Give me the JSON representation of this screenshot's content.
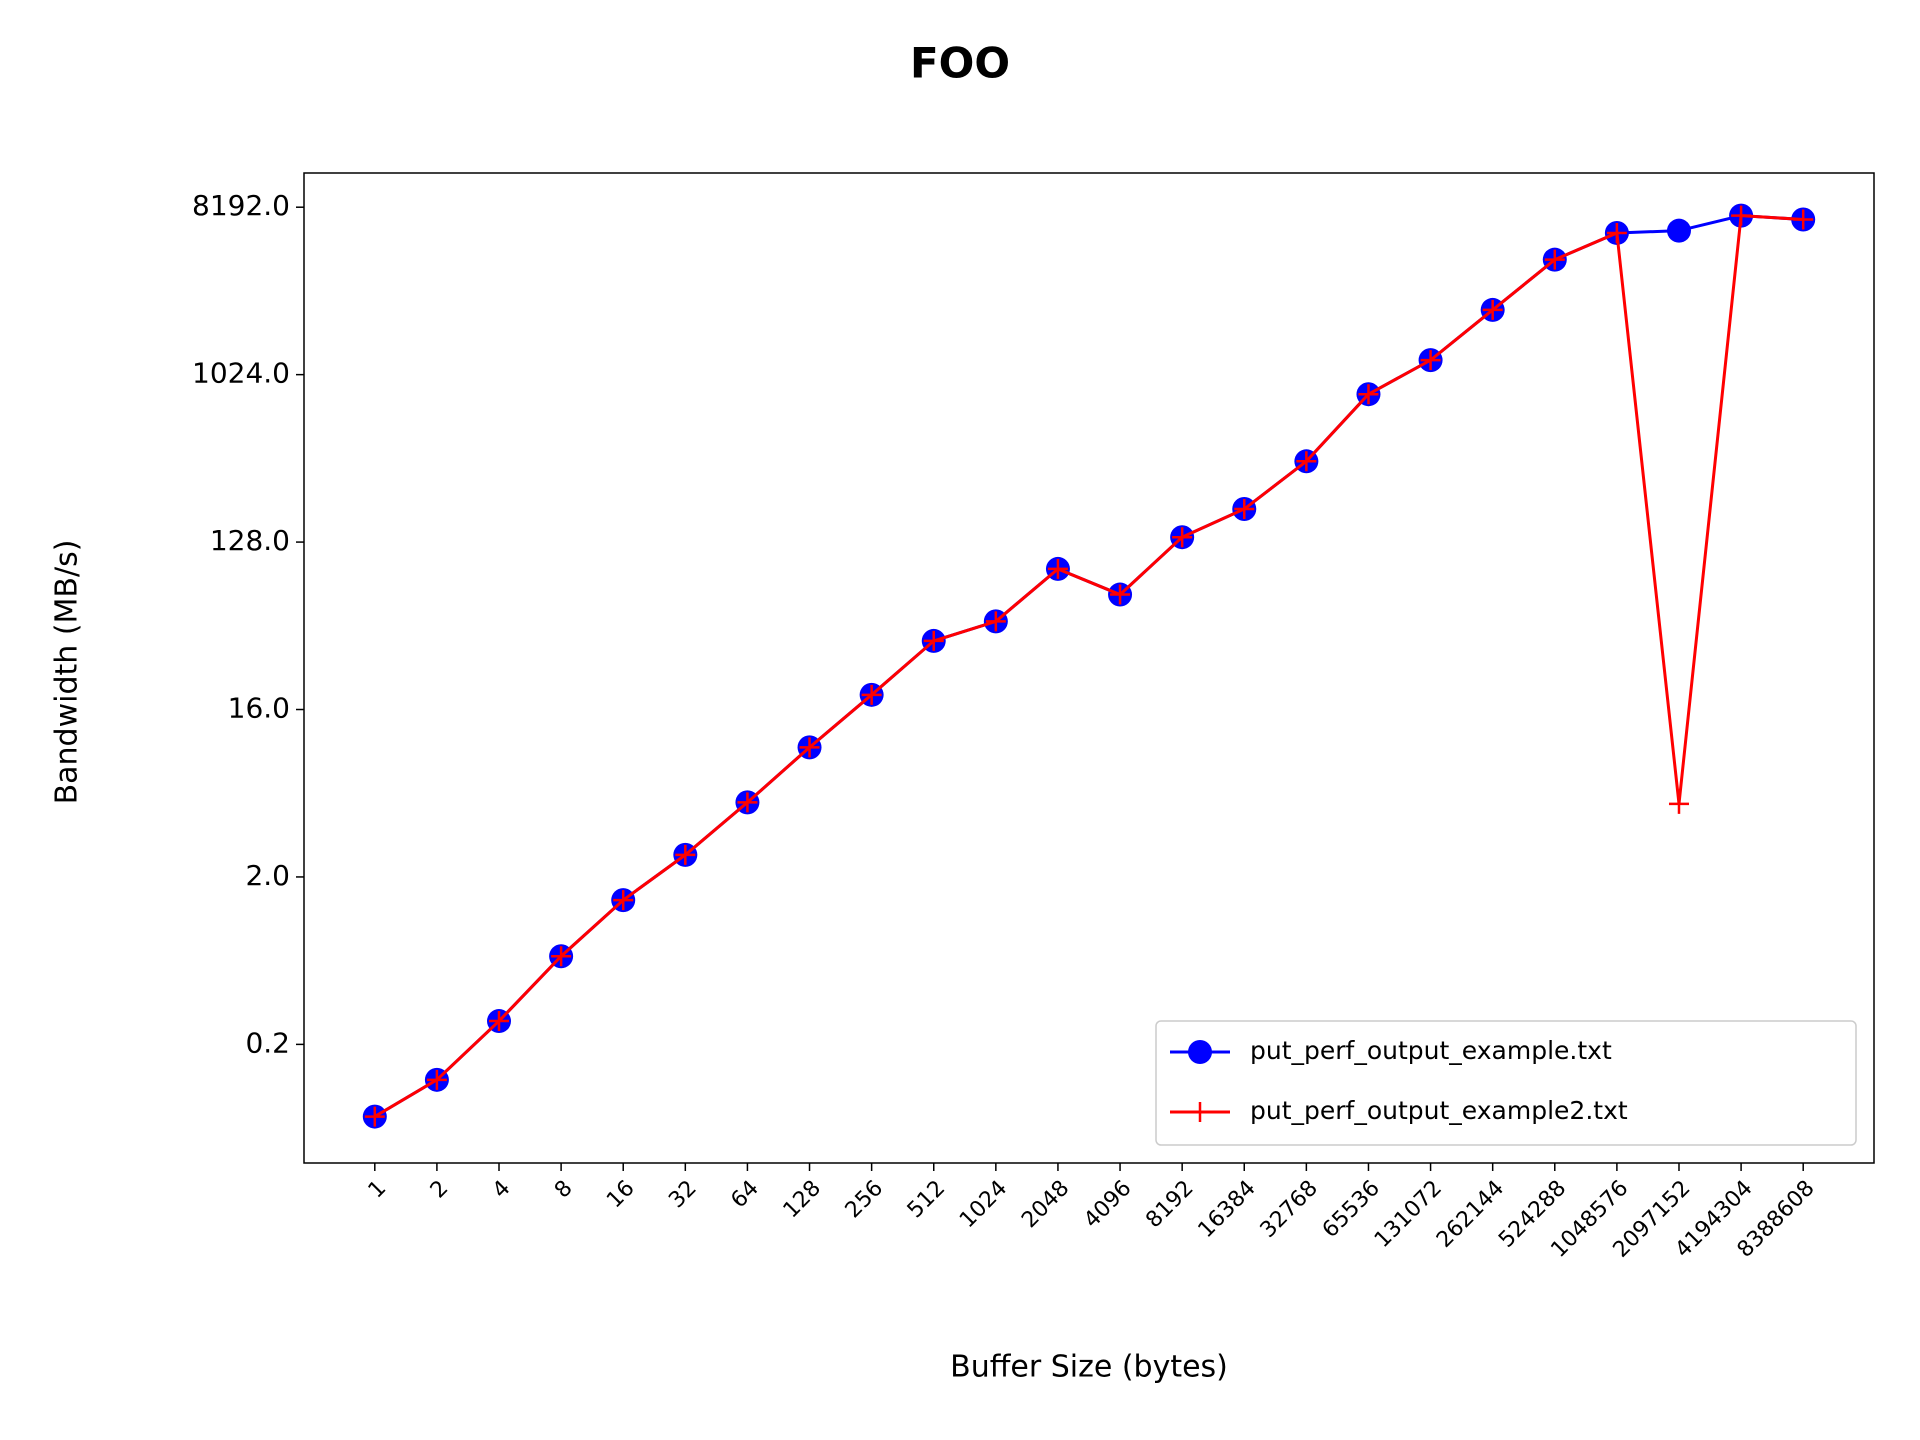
{
  "chart_data": {
    "type": "line",
    "title": "FOO",
    "xlabel": "Buffer Size (bytes)",
    "ylabel": "Bandwidth (MB/s)",
    "categories": [
      "1",
      "2",
      "4",
      "8",
      "16",
      "32",
      "64",
      "128",
      "256",
      "512",
      "1024",
      "2048",
      "4096",
      "8192",
      "16384",
      "32768",
      "65536",
      "131072",
      "262144",
      "524288",
      "1048576",
      "2097152",
      "4194304",
      "8388608"
    ],
    "series": [
      {
        "name": "put_perf_output_example.txt",
        "color": "#0000ff",
        "marker": "circle",
        "values": [
          0.102,
          0.161,
          0.334,
          0.747,
          1.5,
          2.63,
          5.05,
          10.0,
          19.2,
          37.5,
          47.8,
          91.7,
          66.7,
          136,
          193,
          349,
          803,
          1226,
          2288,
          4270,
          5950,
          6120,
          7380,
          7030
        ]
      },
      {
        "name": "put_perf_output_example2.txt",
        "color": "#ff0000",
        "marker": "plus",
        "values": [
          0.102,
          0.161,
          0.334,
          0.747,
          1.5,
          2.63,
          5.05,
          10.0,
          19.2,
          37.5,
          47.8,
          91.7,
          66.7,
          136,
          193,
          349,
          803,
          1226,
          2288,
          4270,
          5950,
          4.96,
          7380,
          7030
        ]
      }
    ],
    "yscale": "log",
    "log_base": 2,
    "ylim": [
      0.0573,
      12528
    ],
    "yticks": [
      {
        "value": 0.25,
        "label": "0.2"
      },
      {
        "value": 2,
        "label": "2.0"
      },
      {
        "value": 16,
        "label": "16.0"
      },
      {
        "value": 128,
        "label": "128.0"
      },
      {
        "value": 1024,
        "label": "1024.0"
      },
      {
        "value": 8192,
        "label": "8192.0"
      }
    ],
    "legend": "lower right",
    "grid": false
  }
}
